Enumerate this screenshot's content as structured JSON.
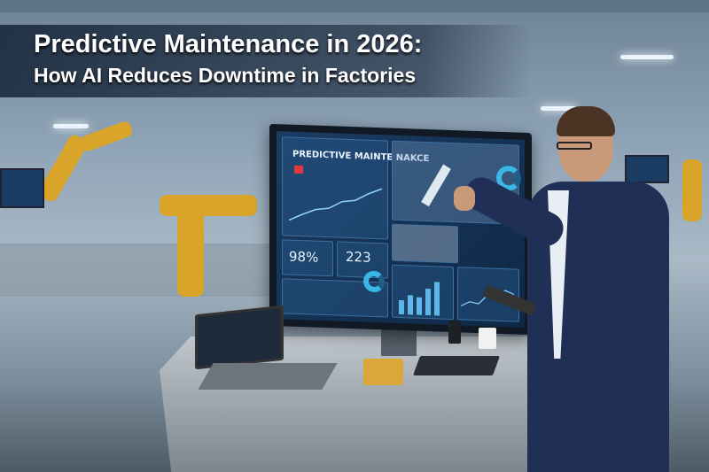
{
  "title": {
    "line1": "Predictive Maintenance in 2026:",
    "line2": "How AI Reduces Downtime in Factories"
  },
  "dashboard": {
    "heading": "PREDICTIVE MAINTE NAKCE",
    "kpi_1": "98%",
    "kpi_2": "223"
  },
  "colors": {
    "banner": "#142337",
    "accent": "#3bb7e6",
    "robot": "#d9a42a",
    "jacket": "#1f2f55"
  }
}
